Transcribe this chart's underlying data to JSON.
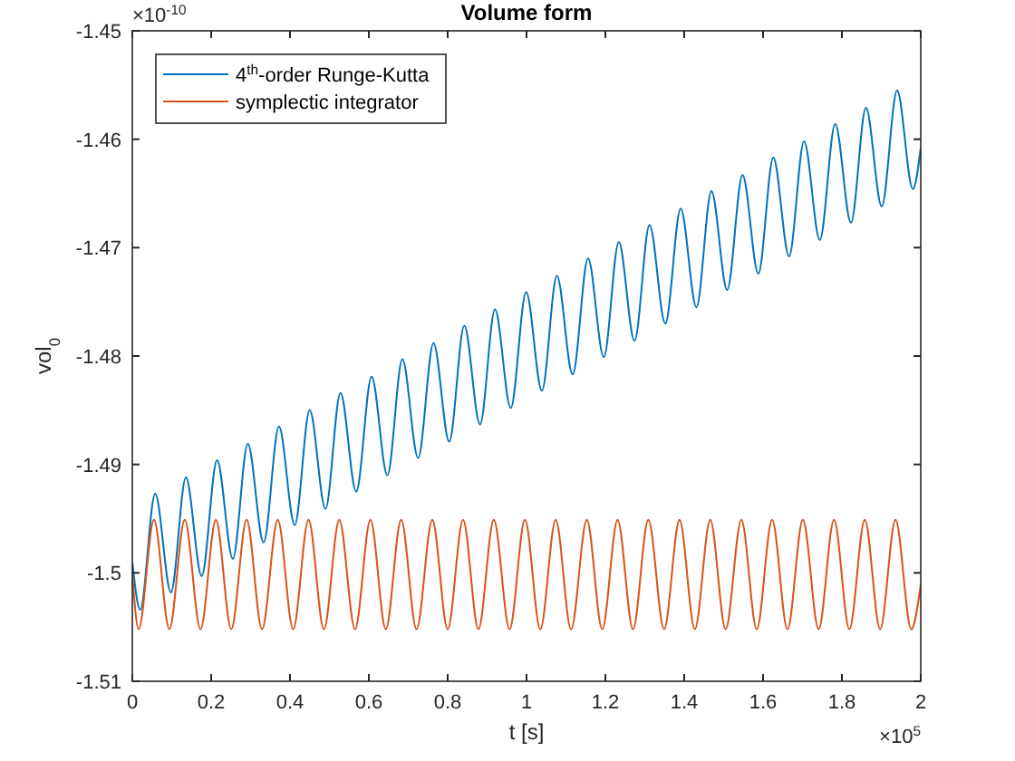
{
  "chart_data": {
    "type": "line",
    "title": "Volume form",
    "xlabel": "t [s]",
    "ylabel": "vol$_{0}$",
    "annotations": [
      "×10$^{-10}$",
      "×10$^{5}$"
    ],
    "xlim": [
      0,
      2
    ],
    "xticks": [
      0,
      0.2,
      0.4,
      0.6,
      0.8,
      1,
      1.2,
      1.4,
      1.6,
      1.8,
      2
    ],
    "ylim": [
      -1.51,
      -1.45
    ],
    "yticks": [
      -1.51,
      -1.5,
      -1.49,
      -1.48,
      -1.47,
      -1.46,
      -1.45
    ],
    "grid": false,
    "legend": "top left",
    "line_style": "solid",
    "marker": "none",
    "series": [
      {
        "name": "4$^{th}$-order Runge-Kutta",
        "color": "#0072bd",
        "x": [
          0,
          0.02,
          0.058,
          0.098,
          0.136,
          0.176,
          0.215,
          0.255,
          0.293,
          0.333,
          0.372,
          0.412,
          0.45,
          0.49,
          0.528,
          0.568,
          0.607,
          0.647,
          0.685,
          0.725,
          0.764,
          0.804,
          0.842,
          0.882,
          0.92,
          0.96,
          0.999,
          1.039,
          1.077,
          1.117,
          1.156,
          1.196,
          1.234,
          1.274,
          1.312,
          1.352,
          1.391,
          1.431,
          1.469,
          1.509,
          1.548,
          1.588,
          1.626,
          1.666,
          1.704,
          1.744,
          1.783,
          1.823,
          1.861,
          1.901,
          1.94,
          1.98,
          2
        ],
        "values": [
          -1.499,
          -1.5034,
          -1.4927,
          -1.5018,
          -1.4912,
          -1.5003,
          -1.4896,
          -1.4987,
          -1.4881,
          -1.4972,
          -1.4865,
          -1.4956,
          -1.485,
          -1.4941,
          -1.4834,
          -1.4925,
          -1.4819,
          -1.491,
          -1.4803,
          -1.4894,
          -1.4788,
          -1.4879,
          -1.4772,
          -1.4863,
          -1.4757,
          -1.4848,
          -1.4741,
          -1.4832,
          -1.4726,
          -1.4817,
          -1.471,
          -1.4801,
          -1.4695,
          -1.4786,
          -1.4679,
          -1.477,
          -1.4664,
          -1.4755,
          -1.4648,
          -1.4739,
          -1.4633,
          -1.4724,
          -1.4617,
          -1.4708,
          -1.4602,
          -1.4693,
          -1.4586,
          -1.4677,
          -1.4571,
          -1.4662,
          -1.4555,
          -1.4646,
          -1.4608
        ]
      },
      {
        "name": "symplectic integrator",
        "color": "#d95319",
        "x": [
          0,
          0.016,
          0.055,
          0.094,
          0.133,
          0.173,
          0.212,
          0.251,
          0.29,
          0.329,
          0.369,
          0.408,
          0.447,
          0.486,
          0.525,
          0.565,
          0.604,
          0.643,
          0.682,
          0.721,
          0.761,
          0.8,
          0.839,
          0.878,
          0.917,
          0.957,
          0.996,
          1.035,
          1.074,
          1.113,
          1.153,
          1.192,
          1.231,
          1.27,
          1.309,
          1.349,
          1.388,
          1.427,
          1.466,
          1.505,
          1.545,
          1.584,
          1.623,
          1.662,
          1.701,
          1.741,
          1.78,
          1.819,
          1.858,
          1.897,
          1.936,
          1.976,
          2
        ],
        "values": [
          -1.5001,
          -1.5052,
          -1.4951,
          -1.5052,
          -1.4951,
          -1.5052,
          -1.4951,
          -1.5052,
          -1.4951,
          -1.5052,
          -1.4951,
          -1.5052,
          -1.4951,
          -1.5052,
          -1.4951,
          -1.5052,
          -1.4951,
          -1.5052,
          -1.4951,
          -1.5052,
          -1.4951,
          -1.5052,
          -1.4951,
          -1.5052,
          -1.4951,
          -1.5052,
          -1.4951,
          -1.5052,
          -1.4951,
          -1.5052,
          -1.4951,
          -1.5052,
          -1.4951,
          -1.5052,
          -1.4951,
          -1.5052,
          -1.4951,
          -1.5052,
          -1.4951,
          -1.5052,
          -1.4951,
          -1.5052,
          -1.4951,
          -1.5052,
          -1.4951,
          -1.5052,
          -1.4951,
          -1.5052,
          -1.4951,
          -1.5052,
          -1.4951,
          -1.5052,
          -1.5011
        ]
      }
    ]
  }
}
